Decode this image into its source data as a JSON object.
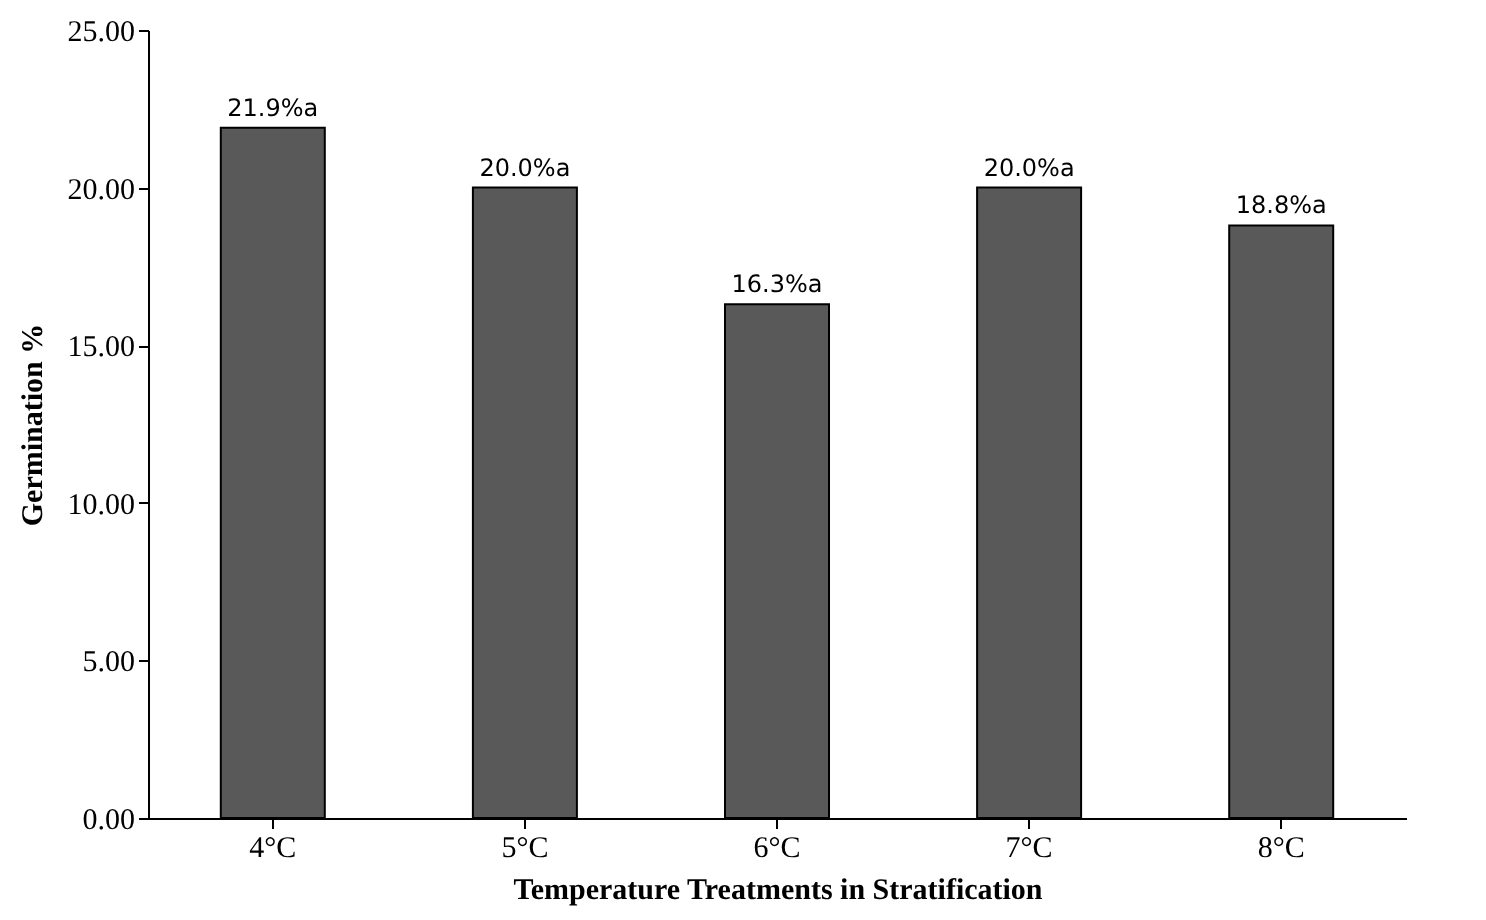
{
  "chart_data": {
    "type": "bar",
    "xlabel": "Temperature Treatments in Stratification",
    "ylabel": "Germination %",
    "categories": [
      "4°C",
      "5°C",
      "6°C",
      "7°C",
      "8°C"
    ],
    "values": [
      21.9,
      20.0,
      16.3,
      20.0,
      18.8
    ],
    "value_labels": [
      "21.9%a",
      "20.0%a",
      "16.3%a",
      "20.0%a",
      "18.8%a"
    ],
    "color": "#595959",
    "ylim": [
      0,
      25
    ],
    "yticks": [
      {
        "value": 0,
        "label": "0.00"
      },
      {
        "value": 5,
        "label": "5.00"
      },
      {
        "value": 10,
        "label": "10.00"
      },
      {
        "value": 15,
        "label": "15.00"
      },
      {
        "value": 20,
        "label": "20.00"
      },
      {
        "value": 25,
        "label": "25.00"
      }
    ],
    "grid": false
  }
}
